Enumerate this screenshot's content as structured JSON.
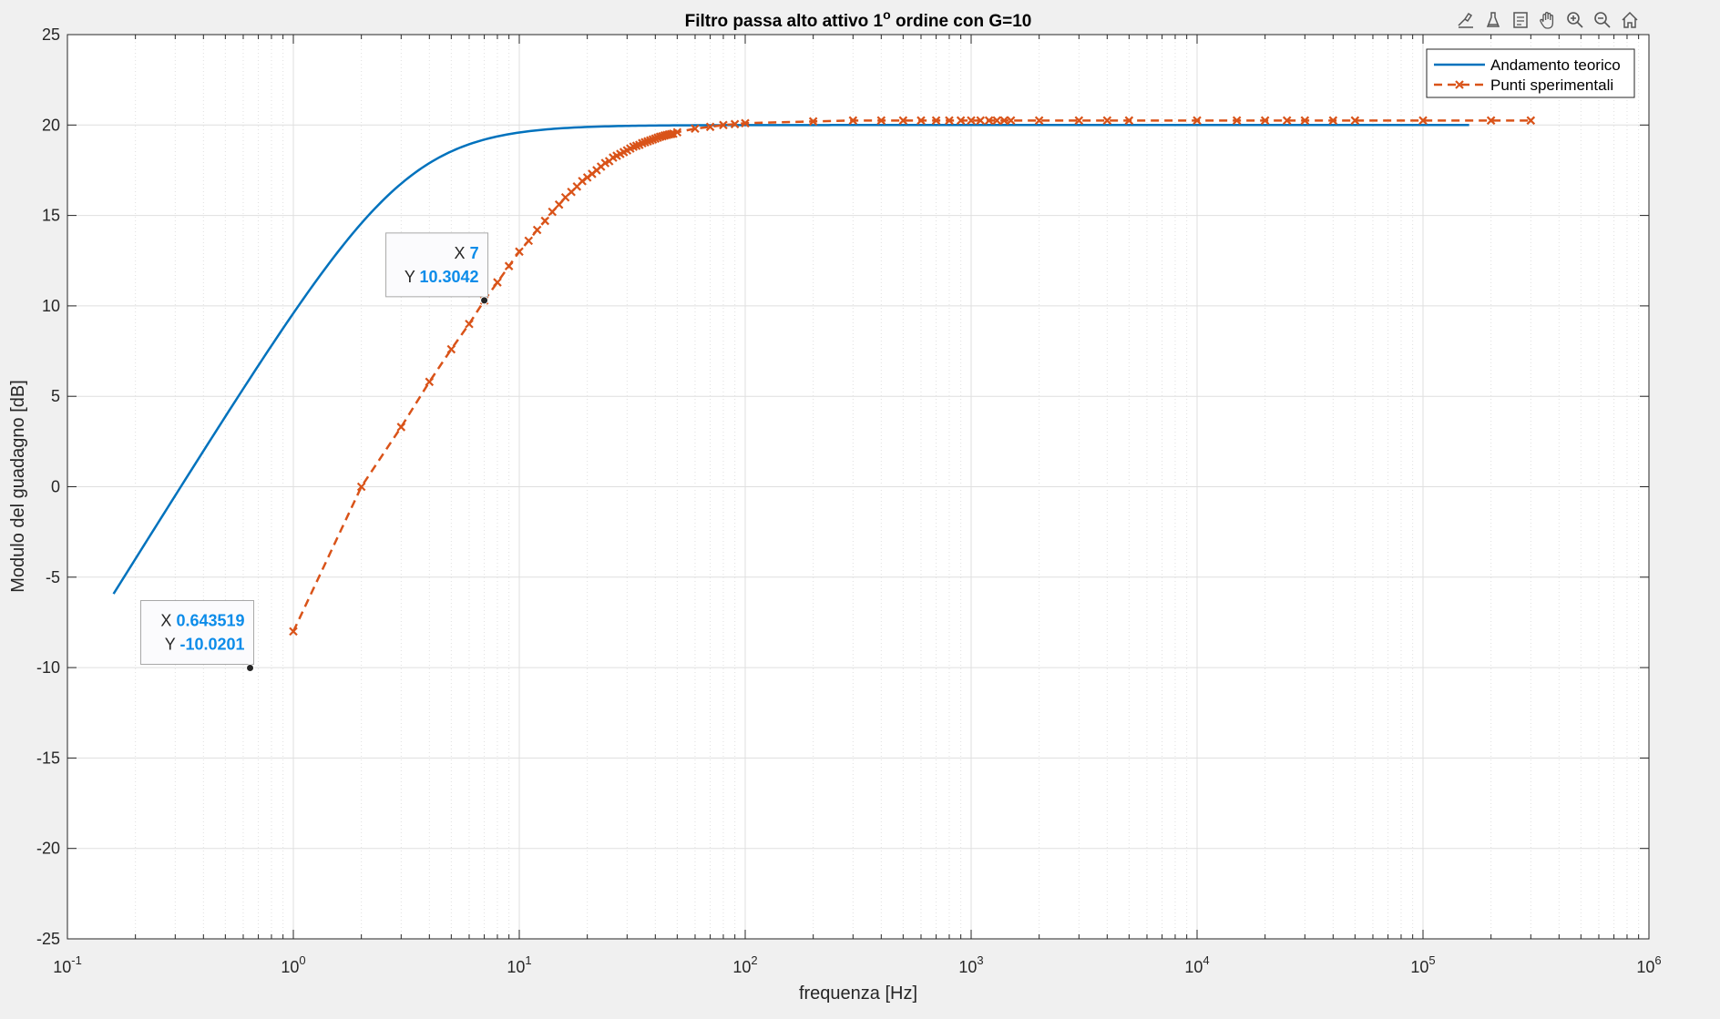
{
  "chart_data": {
    "type": "line",
    "title": "Filtro passa alto attivo 1",
    "title_superscript": "o",
    "title_suffix": " ordine con G=10",
    "xlabel": "frequenza [Hz]",
    "ylabel": "Modulo del guadagno [dB]",
    "xscale": "log",
    "xlim": [
      0.1,
      1000000
    ],
    "ylim": [
      -25,
      25
    ],
    "x_tick_bases": [
      "10",
      "10",
      "10",
      "10",
      "10",
      "10",
      "10",
      "10"
    ],
    "x_tick_exponents": [
      "-1",
      "0",
      "1",
      "2",
      "3",
      "4",
      "5",
      "6"
    ],
    "y_tick_labels": [
      "25",
      "20",
      "15",
      "10",
      "5",
      "0",
      "-5",
      "-10",
      "-15",
      "-20",
      "-25"
    ],
    "grid": true,
    "minor_grid": true,
    "legend_position": "top-right",
    "series": [
      {
        "name": "Andamento teorico",
        "color": "#0072BD",
        "style": "solid",
        "x_range": [
          0.16,
          160000
        ],
        "gain": 10,
        "fc": 3.16
      },
      {
        "name": "Punti sperimentali",
        "color": "#D95319",
        "style": "dashed",
        "marker": "x",
        "x": [
          1,
          2,
          3,
          4,
          5,
          6,
          7,
          8,
          9,
          10,
          11,
          12,
          13,
          14,
          15,
          16,
          17,
          18,
          19,
          20,
          21,
          22,
          23,
          24,
          25,
          26,
          27,
          28,
          29,
          30,
          31,
          32,
          33,
          34,
          35,
          36,
          37,
          38,
          39,
          40,
          41,
          42,
          43,
          44,
          45,
          46,
          47,
          48,
          50,
          60,
          70,
          80,
          90,
          100,
          200,
          300,
          400,
          500,
          600,
          700,
          800,
          900,
          1000,
          1100,
          1200,
          1300,
          1400,
          1500,
          2000,
          3000,
          4000,
          5000,
          10000,
          15000,
          20000,
          25000,
          30000,
          40000,
          50000,
          100000,
          200000,
          300000
        ],
        "y": [
          -8,
          0,
          3.3,
          5.8,
          7.6,
          9.0,
          10.3,
          11.3,
          12.2,
          13.0,
          13.6,
          14.2,
          14.7,
          15.2,
          15.6,
          16.0,
          16.3,
          16.6,
          16.9,
          17.1,
          17.3,
          17.5,
          17.7,
          17.9,
          18.0,
          18.2,
          18.3,
          18.4,
          18.5,
          18.6,
          18.7,
          18.8,
          18.85,
          18.9,
          19.0,
          19.05,
          19.1,
          19.15,
          19.2,
          19.25,
          19.3,
          19.35,
          19.38,
          19.42,
          19.45,
          19.48,
          19.5,
          19.52,
          19.6,
          19.8,
          19.9,
          20.0,
          20.05,
          20.1,
          20.2,
          20.25,
          20.25,
          20.25,
          20.25,
          20.25,
          20.25,
          20.25,
          20.25,
          20.25,
          20.25,
          20.25,
          20.25,
          20.25,
          20.25,
          20.25,
          20.25,
          20.25,
          20.25,
          20.25,
          20.25,
          20.25,
          20.25,
          20.25,
          20.25,
          20.25,
          20.25,
          20.25
        ]
      }
    ],
    "datatips": [
      {
        "x_label": "X",
        "x_value": "7",
        "y_label": "Y",
        "y_value": "10.3042",
        "x": 7,
        "y": 10.3042
      },
      {
        "x_label": "X",
        "x_value": "0.643519",
        "y_label": "Y",
        "y_value": "-10.0201",
        "x": 0.643519,
        "y": -10.0201
      }
    ],
    "colors": {
      "axes_bg": "#ffffff",
      "figure_bg": "#f0f0f0",
      "grid": "#dfdfdf",
      "datatip_value": "#0c8ce9"
    }
  },
  "toolbar": {
    "icons": [
      "brush-icon",
      "data-cursor-icon",
      "edit-icon",
      "pan-icon",
      "zoom-in-icon",
      "zoom-out-icon",
      "home-icon"
    ]
  }
}
